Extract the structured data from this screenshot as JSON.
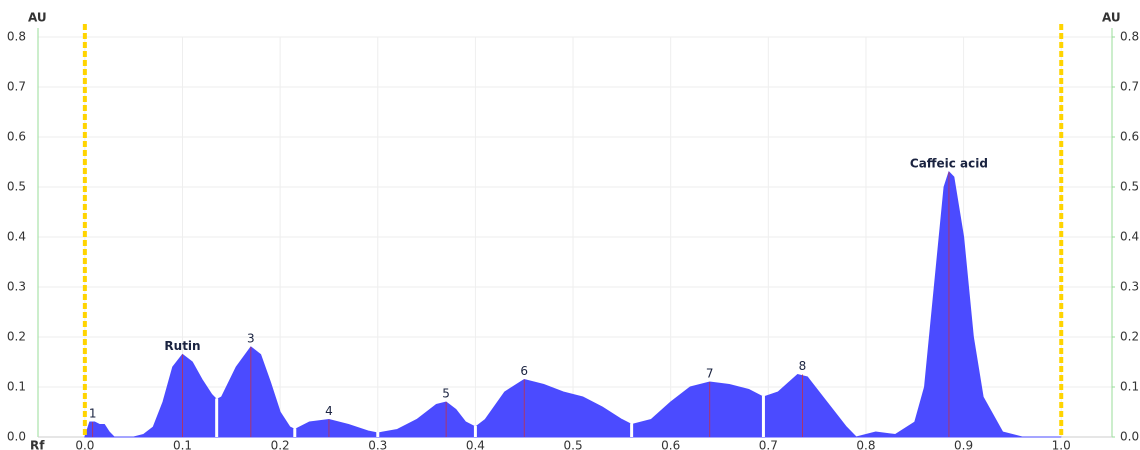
{
  "chart_data": {
    "type": "area",
    "color": "#4b4bff",
    "y_label": "AU",
    "y2_label": "AU",
    "x_label": "Rf",
    "xlim": [
      -0.048,
      1.052
    ],
    "ylim": [
      0,
      0.8
    ],
    "y2lim": [
      0,
      0.8
    ],
    "xticks": [
      {
        "value": 0,
        "label": "0.0"
      },
      0.1,
      0.2,
      0.3,
      0.4,
      0.5,
      0.6,
      0.7,
      0.8,
      0.9,
      {
        "value": 1,
        "label": "1.0"
      }
    ],
    "yticks": [
      {
        "value": 0,
        "label": "0.0"
      },
      0.1,
      0.2,
      0.3,
      0.4,
      0.5,
      0.6,
      0.7,
      0.8
    ],
    "y2ticks": [
      {
        "value": 0,
        "label": "0.0"
      },
      0.1,
      0.2,
      0.3,
      0.4,
      0.5,
      0.6,
      0.7,
      0.8
    ],
    "grid": true,
    "markers": [
      0,
      1
    ],
    "x": [
      0,
      0.005,
      0.01,
      0.015,
      0.02,
      0.025,
      0.03,
      0.05,
      0.06,
      0.07,
      0.08,
      0.09,
      0.1,
      0.11,
      0.12,
      0.13,
      0.135,
      0.14,
      0.155,
      0.17,
      0.18,
      0.19,
      0.2,
      0.21,
      0.215,
      0.23,
      0.25,
      0.27,
      0.29,
      0.3,
      0.32,
      0.34,
      0.36,
      0.37,
      0.38,
      0.39,
      0.4,
      0.41,
      0.43,
      0.45,
      0.47,
      0.49,
      0.51,
      0.53,
      0.55,
      0.56,
      0.58,
      0.6,
      0.62,
      0.64,
      0.66,
      0.68,
      0.695,
      0.71,
      0.73,
      0.74,
      0.76,
      0.78,
      0.79,
      0.81,
      0.83,
      0.85,
      0.86,
      0.87,
      0.88,
      0.885,
      0.89,
      0.9,
      0.91,
      0.92,
      0.94,
      0.96,
      1
    ],
    "values": [
      0,
      0.03,
      0.03,
      0.025,
      0.025,
      0.01,
      0,
      0,
      0.005,
      0.02,
      0.07,
      0.14,
      0.165,
      0.15,
      0.115,
      0.085,
      0.075,
      0.08,
      0.14,
      0.18,
      0.165,
      0.11,
      0.05,
      0.02,
      0.015,
      0.03,
      0.035,
      0.025,
      0.012,
      0.008,
      0.015,
      0.035,
      0.065,
      0.07,
      0.055,
      0.03,
      0.02,
      0.035,
      0.09,
      0.115,
      0.105,
      0.09,
      0.08,
      0.06,
      0.035,
      0.025,
      0.035,
      0.07,
      0.1,
      0.11,
      0.105,
      0.095,
      0.08,
      0.09,
      0.125,
      0.12,
      0.07,
      0.02,
      0,
      0.01,
      0.005,
      0.03,
      0.1,
      0.3,
      0.5,
      0.53,
      0.52,
      0.4,
      0.2,
      0.08,
      0.01,
      0,
      0
    ],
    "separators": [
      0.135,
      0.215,
      0.3,
      0.4,
      0.56,
      0.695
    ],
    "annotations": [
      {
        "text": "1",
        "x": 0.008,
        "y": 0.03
      },
      {
        "text": "Rutin",
        "x": 0.1,
        "y": 0.165,
        "bold": true
      },
      {
        "text": "3",
        "x": 0.17,
        "y": 0.18
      },
      {
        "text": "4",
        "x": 0.25,
        "y": 0.035
      },
      {
        "text": "5",
        "x": 0.37,
        "y": 0.07
      },
      {
        "text": "6",
        "x": 0.45,
        "y": 0.115
      },
      {
        "text": "7",
        "x": 0.64,
        "y": 0.11
      },
      {
        "text": "8",
        "x": 0.735,
        "y": 0.125
      },
      {
        "text": "Caffeic acid",
        "x": 0.885,
        "y": 0.53,
        "bold": true
      }
    ]
  }
}
